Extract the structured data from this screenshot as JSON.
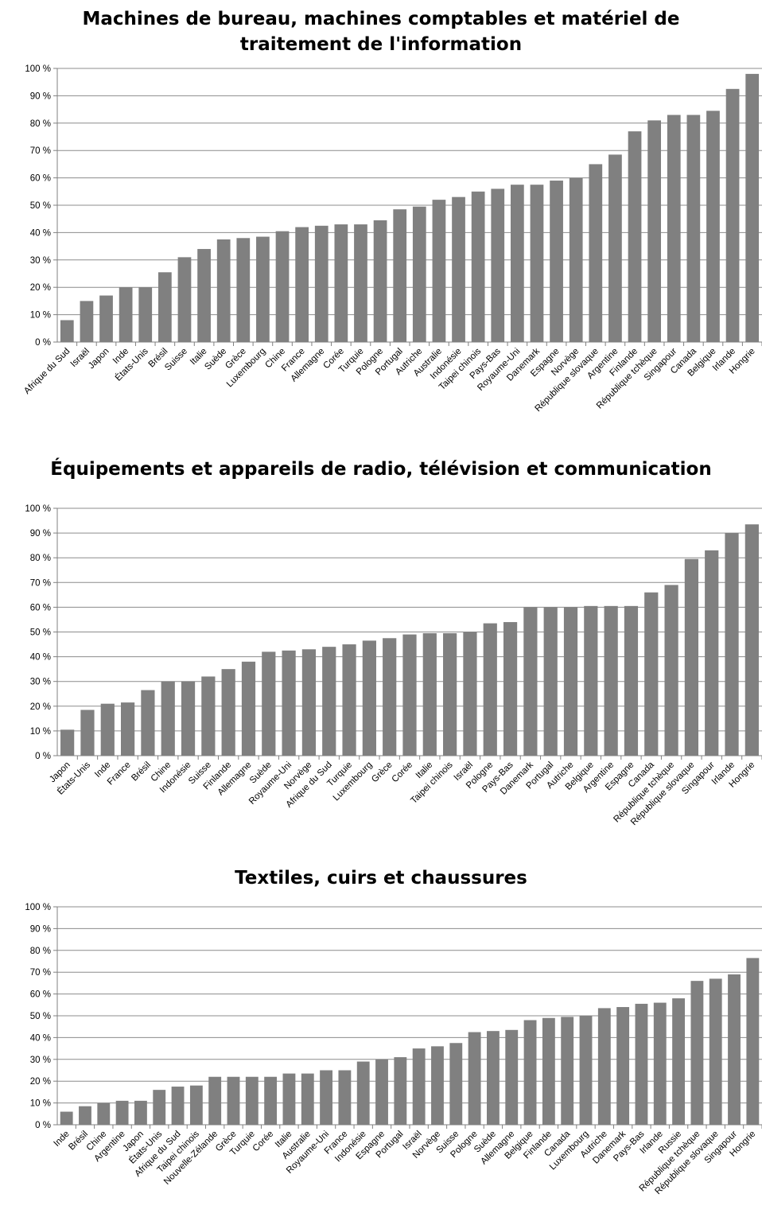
{
  "charts": [
    {
      "title_line1": "Machines de bureau, machines comptables et matériel de",
      "title_line2": "traitement de l'information",
      "y_ticks": [
        "0 %",
        "10 %",
        "20 %",
        "30 %",
        "40 %",
        "50 %",
        "60 %",
        "70 %",
        "80 %",
        "90 %",
        "100 %"
      ],
      "bar_color": "#808080"
    },
    {
      "title_line1": "Équipements et appareils de radio, télévision et communication",
      "title_line2": "",
      "y_ticks": [
        "0 %",
        "10 %",
        "20 %",
        "30 %",
        "40 %",
        "50 %",
        "60 %",
        "70 %",
        "80 %",
        "90 %",
        "100 %"
      ],
      "bar_color": "#808080"
    },
    {
      "title_line1": "Textiles, cuirs et chaussures",
      "title_line2": "",
      "y_ticks": [
        "0 %",
        "10 %",
        "20 %",
        "30 %",
        "40 %",
        "50 %",
        "60 %",
        "70 %",
        "80 %",
        "90 %",
        "100 %"
      ],
      "bar_color": "#808080"
    }
  ],
  "chart_data": [
    {
      "type": "bar",
      "title": "Machines de bureau, machines comptables et matériel de traitement de l'information",
      "ylim": [
        0,
        100
      ],
      "grid": true,
      "categories": [
        "Afrique du Sud",
        "Israël",
        "Japon",
        "Inde",
        "États-Unis",
        "Brésil",
        "Suisse",
        "Italie",
        "Suède",
        "Grèce",
        "Luxembourg",
        "Chine",
        "France",
        "Allemagne",
        "Corée",
        "Turquie",
        "Pologne",
        "Portugal",
        "Autriche",
        "Australie",
        "Indonésie",
        "Taipei chinois",
        "Pays-Bas",
        "Royaume-Uni",
        "Danemark",
        "Espagne",
        "Norvège",
        "République slovaque",
        "Argentine",
        "Finlande",
        "République tchèque",
        "Singapour",
        "Canada",
        "Belgique",
        "Irlande",
        "Hongrie"
      ],
      "values": [
        8,
        15,
        17,
        20,
        20,
        25.5,
        31,
        34,
        37.5,
        38,
        38.5,
        40.5,
        42,
        42.5,
        43,
        43,
        44.5,
        48.5,
        49.5,
        52,
        53,
        55,
        56,
        57.5,
        57.5,
        59,
        60,
        65,
        68.5,
        77,
        81,
        83,
        83,
        84.5,
        92.5,
        98
      ]
    },
    {
      "type": "bar",
      "title": "Équipements et appareils de radio, télévision et communication",
      "ylim": [
        0,
        100
      ],
      "grid": true,
      "categories": [
        "Japon",
        "États-Unis",
        "Inde",
        "France",
        "Brésil",
        "Chine",
        "Indonésie",
        "Suisse",
        "Finlande",
        "Allemagne",
        "Suède",
        "Royaume-Uni",
        "Norvège",
        "Afrique du Sud",
        "Turquie",
        "Luxembourg",
        "Grèce",
        "Corée",
        "Italie",
        "Taipei chinois",
        "Israël",
        "Pologne",
        "Pays-Bas",
        "Danemark",
        "Portugal",
        "Autriche",
        "Belgique",
        "Argentine",
        "Espagne",
        "Canada",
        "République tchèque",
        "République slovaque",
        "Singapour",
        "Irlande",
        "Hongrie"
      ],
      "values": [
        10.5,
        18.5,
        21,
        21.5,
        26.5,
        30,
        30,
        32,
        35,
        38,
        42,
        42.5,
        43,
        44,
        45,
        46.5,
        47.5,
        49,
        49.5,
        49.5,
        50,
        53.5,
        54,
        60,
        60,
        60,
        60.5,
        60.5,
        60.5,
        66,
        69,
        79.5,
        83,
        90,
        93.5
      ]
    },
    {
      "type": "bar",
      "title": "Textiles, cuirs et chaussures",
      "ylim": [
        0,
        100
      ],
      "grid": true,
      "categories": [
        "Inde",
        "Brésil",
        "Chine",
        "Argentine",
        "Japon",
        "États-Unis",
        "Afrique du Sud",
        "Taipei chinois",
        "Nouvelle-Zélande",
        "Grèce",
        "Turquie",
        "Corée",
        "Italie",
        "Australie",
        "Royaume-Uni",
        "France",
        "Indonésie",
        "Espagne",
        "Portugal",
        "Israël",
        "Norvège",
        "Suisse",
        "Pologne",
        "Suède",
        "Allemagne",
        "Belgique",
        "Finlande",
        "Canada",
        "Luxembourg",
        "Autriche",
        "Danemark",
        "Pays-Bas",
        "Irlande",
        "Russie",
        "République tchèque",
        "République slovaque",
        "Singapour",
        "Hongrie"
      ],
      "values": [
        6,
        8.5,
        10,
        11,
        11,
        16,
        17.5,
        18,
        22,
        22,
        22,
        22,
        23.5,
        23.5,
        25,
        25,
        29,
        30,
        31,
        35,
        36,
        37.5,
        42.5,
        43,
        43.5,
        48,
        49,
        49.5,
        50,
        53.5,
        54,
        55.5,
        56,
        58,
        66,
        67,
        69,
        76.5
      ]
    }
  ]
}
